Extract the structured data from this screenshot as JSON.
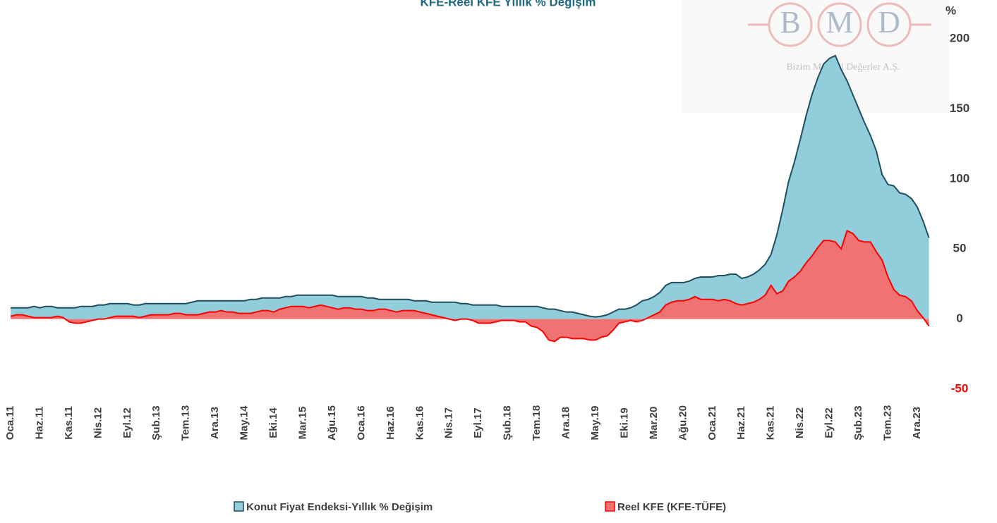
{
  "chart_data": {
    "type": "area",
    "title": "KFE-Reel KFE Yıllık % Değişim",
    "y_label": "%",
    "watermark": {
      "letters": [
        "B",
        "M",
        "D"
      ],
      "text": "Bizim Menkul Değerler A.Ş."
    },
    "categories": [
      "Oca.11",
      null,
      null,
      null,
      null,
      "Haz.11",
      null,
      null,
      null,
      null,
      "Kas.11",
      null,
      null,
      null,
      null,
      "Nis.12",
      null,
      null,
      null,
      null,
      "Eyl.12",
      null,
      null,
      null,
      null,
      "Şub.13",
      null,
      null,
      null,
      null,
      "Tem.13",
      null,
      null,
      null,
      null,
      "Ara.13",
      null,
      null,
      null,
      null,
      "May.14",
      null,
      null,
      null,
      null,
      "Eki.14",
      null,
      null,
      null,
      null,
      "Mar.15",
      null,
      null,
      null,
      null,
      "Ağu.15",
      null,
      null,
      null,
      null,
      "Oca.16",
      null,
      null,
      null,
      null,
      "Haz.16",
      null,
      null,
      null,
      null,
      "Kas.16",
      null,
      null,
      null,
      null,
      "Nis.17",
      null,
      null,
      null,
      null,
      "Eyl.17",
      null,
      null,
      null,
      null,
      "Şub.18",
      null,
      null,
      null,
      null,
      "Tem.18",
      null,
      null,
      null,
      null,
      "Ara.18",
      null,
      null,
      null,
      null,
      "May.19",
      null,
      null,
      null,
      null,
      "Eki.19",
      null,
      null,
      null,
      null,
      "Mar.20",
      null,
      null,
      null,
      null,
      "Ağu.20",
      null,
      null,
      null,
      null,
      "Oca.21",
      null,
      null,
      null,
      null,
      "Haz.21",
      null,
      null,
      null,
      null,
      "Kas.21",
      null,
      null,
      null,
      null,
      "Nis.22",
      null,
      null,
      null,
      null,
      "Eyl.22",
      null,
      null,
      null,
      null,
      "Şub.23",
      null,
      null,
      null,
      null,
      "Tem.23",
      null,
      null,
      null,
      null,
      "Ara.23",
      null,
      null
    ],
    "series": [
      {
        "name": "Konut Fiyat Endeksi-Yıllık % Değişim",
        "color": "#92cddc",
        "line_color": "#1f4e5f",
        "values": [
          8,
          8,
          8,
          8,
          9,
          8,
          9,
          9,
          8,
          8,
          8,
          8,
          9,
          9,
          9,
          10,
          10,
          11,
          11,
          11,
          11,
          10,
          10,
          11,
          11,
          11,
          11,
          11,
          11,
          11,
          11,
          12,
          13,
          13,
          13,
          13,
          13,
          13,
          13,
          13,
          13,
          14,
          14,
          15,
          15,
          15,
          15,
          16,
          16,
          17,
          17,
          17,
          17,
          17,
          17,
          17,
          16,
          16,
          16,
          16,
          16,
          15,
          15,
          14,
          14,
          14,
          14,
          14,
          14,
          13,
          13,
          13,
          12,
          12,
          12,
          12,
          12,
          11,
          11,
          10,
          10,
          10,
          10,
          10,
          9,
          9,
          9,
          9,
          9,
          9,
          9,
          8,
          7,
          7,
          6,
          5,
          5,
          4,
          3,
          2,
          1.5,
          2,
          3,
          5,
          7,
          7,
          8,
          10,
          13,
          14,
          16,
          19,
          24,
          26,
          26,
          26,
          27,
          29,
          30,
          30,
          30,
          31,
          31,
          32,
          32,
          29,
          30,
          32,
          35,
          39,
          46,
          60,
          78,
          98,
          112,
          128,
          145,
          160,
          172,
          182,
          186,
          188,
          178,
          170,
          160,
          150,
          140,
          131,
          120,
          103,
          96,
          95,
          90,
          89,
          86,
          80,
          70,
          58
        ]
      },
      {
        "name": "Reel KFE (KFE-TÜFE)",
        "color": "#f07272",
        "line_color": "#ff0000",
        "values": [
          2,
          3,
          3,
          2,
          1,
          1,
          1,
          1,
          2,
          1,
          -2,
          -3,
          -3,
          -2,
          -1,
          0,
          0,
          1,
          2,
          2,
          2,
          2,
          1,
          2,
          3,
          3,
          3,
          3,
          4,
          4,
          3,
          3,
          3,
          4,
          5,
          5,
          6,
          5,
          5,
          4,
          4,
          4,
          5,
          6,
          6,
          5,
          7,
          8,
          9,
          9,
          9,
          8,
          9,
          10,
          9,
          8,
          7,
          8,
          8,
          7,
          7,
          6,
          6,
          7,
          7,
          6,
          5,
          6,
          6,
          6,
          5,
          4,
          3,
          2,
          1,
          0,
          -1,
          0,
          0,
          -1,
          -3,
          -3,
          -3,
          -2,
          -1,
          -1,
          -1,
          -2,
          -2,
          -5,
          -6,
          -9,
          -15,
          -16,
          -13,
          -13,
          -14,
          -14,
          -14,
          -15,
          -15,
          -13,
          -12,
          -8,
          -3,
          -2,
          -1,
          -2,
          -1,
          1,
          3,
          5,
          10,
          12,
          13,
          13,
          14,
          16,
          14,
          14,
          14,
          13,
          14,
          13,
          11,
          10,
          11,
          12,
          14,
          17,
          24,
          18,
          20,
          27,
          30,
          34,
          40,
          45,
          51,
          56,
          56,
          55,
          50,
          63,
          61,
          56,
          55,
          55,
          48,
          42,
          30,
          21,
          17,
          16,
          13,
          6,
          1,
          -5
        ]
      }
    ],
    "ylim": [
      -50,
      200
    ],
    "yticks": [
      -50,
      0,
      50,
      100,
      150,
      200
    ],
    "tick_color": "#404040",
    "negative_tick_color": "#ff0000",
    "grid": false,
    "legend": "bottom"
  }
}
